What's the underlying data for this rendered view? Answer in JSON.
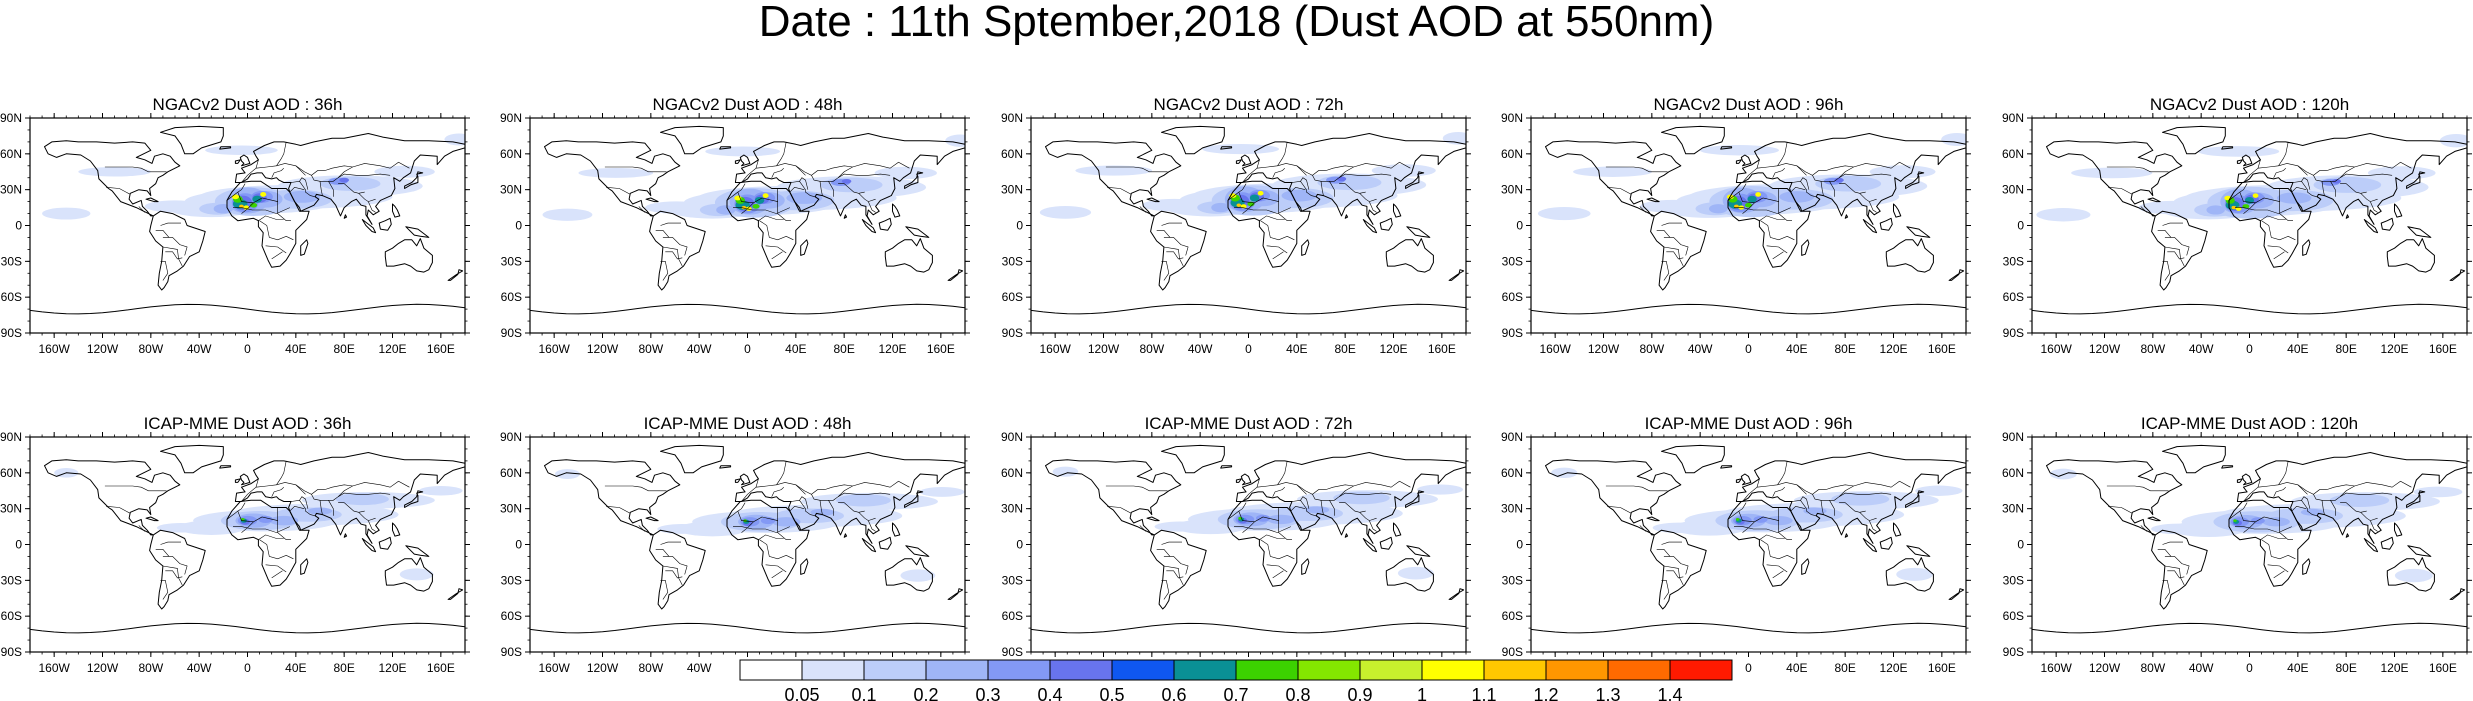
{
  "title": "Date : 11th Sptember,2018 (Dust AOD at 550nm)",
  "lat_ticks": [
    "90N",
    "60N",
    "30N",
    "0",
    "30S",
    "60S",
    "90S"
  ],
  "lon_ticks": [
    "160W",
    "120W",
    "80W",
    "40W",
    "0",
    "40E",
    "80E",
    "120E",
    "160E"
  ],
  "rows": [
    {
      "model": "NGACv2",
      "panels": [
        {
          "title": "NGACv2 Dust AOD : 36h",
          "lead": "36h"
        },
        {
          "title": "NGACv2 Dust AOD : 48h",
          "lead": "48h"
        },
        {
          "title": "NGACv2 Dust AOD : 72h",
          "lead": "72h"
        },
        {
          "title": "NGACv2 Dust AOD : 96h",
          "lead": "96h"
        },
        {
          "title": "NGACv2 Dust AOD : 120h",
          "lead": "120h"
        }
      ]
    },
    {
      "model": "ICAP-MME",
      "panels": [
        {
          "title": "ICAP-MME Dust AOD : 36h",
          "lead": "36h"
        },
        {
          "title": "ICAP-MME Dust AOD : 48h",
          "lead": "48h"
        },
        {
          "title": "ICAP-MME Dust AOD : 72h",
          "lead": "72h"
        },
        {
          "title": "ICAP-MME Dust AOD : 96h",
          "lead": "96h"
        },
        {
          "title": "ICAP-MME Dust AOD : 120h",
          "lead": "120h"
        }
      ]
    }
  ],
  "colorbar": {
    "labels": [
      "0.05",
      "0.1",
      "0.2",
      "0.3",
      "0.4",
      "0.5",
      "0.6",
      "0.7",
      "0.8",
      "0.9",
      "1",
      "1.1",
      "1.2",
      "1.3",
      "1.4"
    ],
    "colors": [
      "#ffffff",
      "#d9e3fb",
      "#bccdf9",
      "#9fb5f7",
      "#8399f5",
      "#6874ee",
      "#0f57f0",
      "#0a9095",
      "#3cd200",
      "#84e600",
      "#c8f02d",
      "#ffff00",
      "#ffc800",
      "#ff9600",
      "#ff6a00",
      "#ff1a00"
    ]
  }
}
